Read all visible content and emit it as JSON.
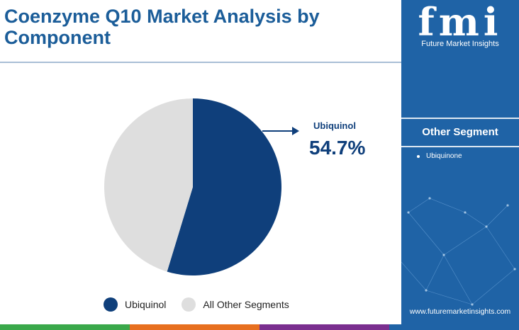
{
  "title": "Coenzyme Q10 Market Analysis by Component",
  "chart_data": {
    "type": "pie",
    "title": "Coenzyme Q10 Market Analysis by Component",
    "slices": [
      {
        "label": "Ubiquinol",
        "value": 54.7,
        "color": "#0f3f7b"
      },
      {
        "label": "All Other Segments",
        "value": 45.3,
        "color": "#dedede"
      }
    ],
    "callout": {
      "label": "Ubiquinol",
      "value_text": "54.7%"
    },
    "legend_position": "bottom"
  },
  "legend": [
    {
      "label": "Ubiquinol",
      "color": "#0f3f7b"
    },
    {
      "label": "All Other Segments",
      "color": "#dedede"
    }
  ],
  "sidebar": {
    "logo_text": "fmi",
    "logo_subtitle": "Future Market Insights",
    "heading": "Other Segment",
    "items": [
      "Ubiquinone"
    ],
    "website": "www.futuremarketinsights.com"
  },
  "colors": {
    "title": "#1b5d99",
    "sidebar_bg": "#1f63a6",
    "bottom_bar": [
      "#3aa84a",
      "#e76f1f",
      "#7a2f8f",
      "#1f63a6"
    ]
  }
}
